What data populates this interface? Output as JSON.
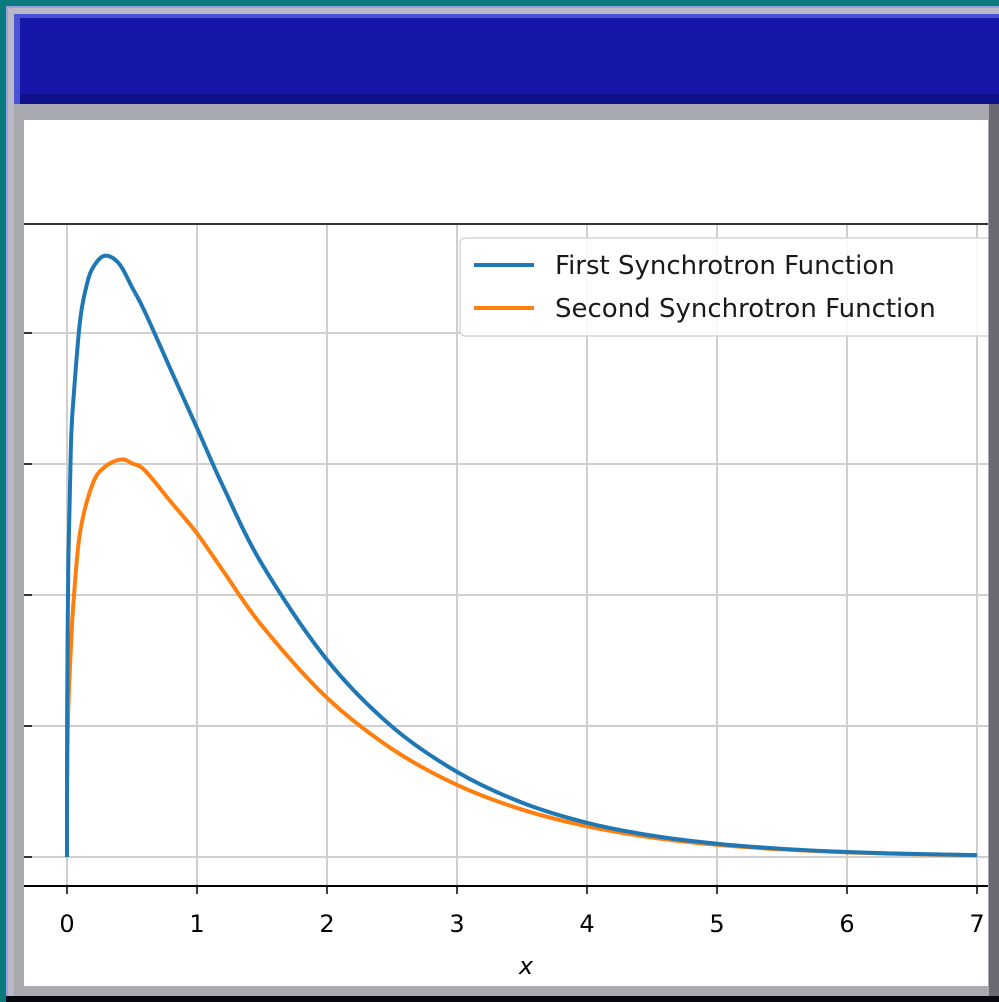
{
  "window": {
    "title": ""
  },
  "chart_data": {
    "type": "line",
    "title": "",
    "xlabel": "x",
    "ylabel": "",
    "xlim": [
      0,
      7
    ],
    "xticks": [
      0,
      1,
      2,
      3,
      4,
      5,
      6,
      7
    ],
    "grid": true,
    "legend_placement": "top-right",
    "series": [
      {
        "name": "First Synchrotron Function",
        "color": "#1f77b4",
        "x": [
          0,
          0.0001,
          0.001,
          0.01,
          0.03,
          0.05,
          0.1,
          0.15,
          0.2,
          0.29,
          0.4,
          0.5,
          0.6,
          0.8,
          1.0,
          1.2,
          1.5,
          2.0,
          2.5,
          3.0,
          3.5,
          4.0,
          4.5,
          5.0,
          5.5,
          6.0,
          6.5,
          7.0
        ],
        "values": [
          0,
          0.0996,
          0.213,
          0.445,
          0.628,
          0.7,
          0.818,
          0.872,
          0.9,
          0.918,
          0.906,
          0.87,
          0.832,
          0.743,
          0.655,
          0.566,
          0.447,
          0.301,
          0.199,
          0.13,
          0.083,
          0.0522,
          0.0326,
          0.0202,
          0.0125,
          0.0077,
          0.0047,
          0.0029
        ]
      },
      {
        "name": "Second Synchrotron Function",
        "color": "#ff7f0e",
        "x": [
          0,
          0.0001,
          0.001,
          0.01,
          0.03,
          0.05,
          0.1,
          0.2,
          0.3,
          0.42,
          0.5,
          0.6,
          0.8,
          1.0,
          1.2,
          1.5,
          2.0,
          2.5,
          3.0,
          3.5,
          4.0,
          4.5,
          5.0,
          5.5,
          6.0,
          6.5,
          7.0
        ],
        "values": [
          0,
          0.0502,
          0.107,
          0.227,
          0.32,
          0.389,
          0.495,
          0.571,
          0.597,
          0.607,
          0.601,
          0.59,
          0.542,
          0.494,
          0.437,
          0.353,
          0.243,
          0.165,
          0.11,
          0.0724,
          0.0469,
          0.0298,
          0.0186,
          0.0116,
          0.0071,
          0.0044,
          0.0026
        ]
      }
    ]
  }
}
